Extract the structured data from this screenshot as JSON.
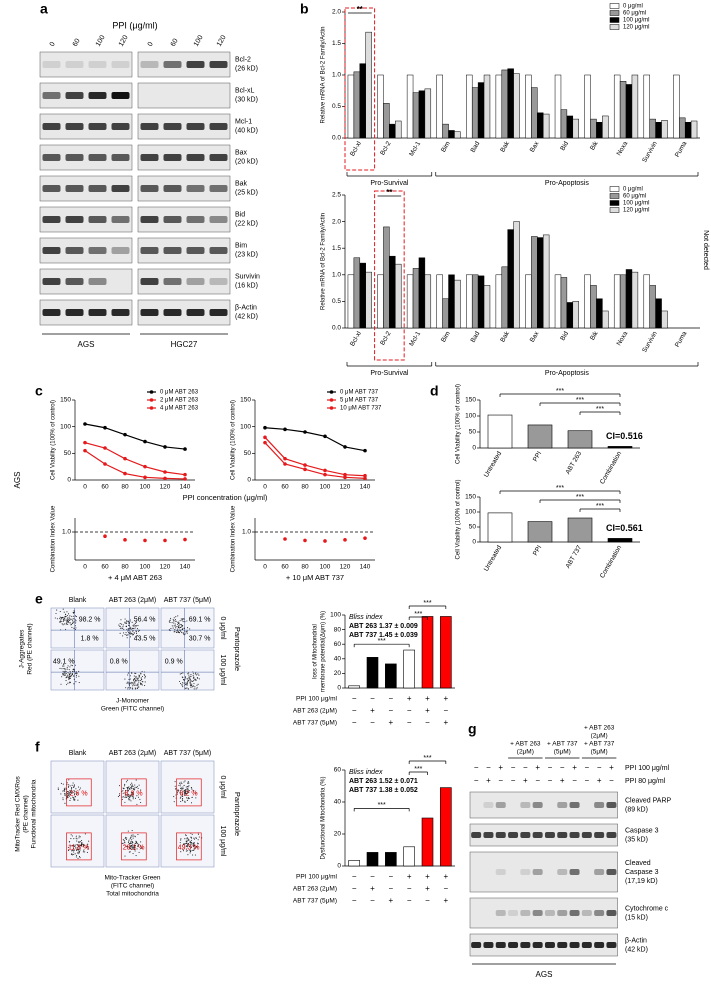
{
  "panels": [
    "a",
    "b",
    "c",
    "d",
    "e",
    "f",
    "g"
  ],
  "blot_a": {
    "title": "PPI (μg/ml)",
    "lanes": [
      "0",
      "60",
      "100",
      "120",
      "0",
      "60",
      "100",
      "120"
    ],
    "proteins": [
      [
        "Bcl-2",
        "(26 kD)"
      ],
      [
        "Bcl-xL",
        "(30 kD)"
      ],
      [
        "Mcl-1",
        "(40 kD)"
      ],
      [
        "Bax",
        "(20 kD)"
      ],
      [
        "Bak",
        "(25 kD)"
      ],
      [
        "Bid",
        "(22 kD)"
      ],
      [
        "Bim",
        "(23 kD)"
      ],
      [
        "Survivin",
        "(16 kD)"
      ],
      [
        "β-Actin",
        "(42 kD)"
      ]
    ],
    "cell_lines": [
      "AGS",
      "HGC27"
    ]
  },
  "side_label_c": "AGS",
  "chart_data": [
    {
      "type": "bar",
      "ylabel": "Relative mRNA of Bcl-2 Family/Actin",
      "categories": [
        "Bcl-xl",
        "Bcl-2",
        "Mcl-1",
        "Bim",
        "Bad",
        "Bak",
        "Bax",
        "Bid",
        "Bik",
        "Noxa",
        "Survivin",
        "Puma"
      ],
      "series": [
        {
          "name": "0 μg/ml",
          "color": "#ffffff",
          "values": [
            1,
            1,
            1,
            1,
            1,
            1,
            1,
            1,
            1,
            1,
            1,
            1
          ]
        },
        {
          "name": "60 μg/ml",
          "color": "#999999",
          "values": [
            1.05,
            0.55,
            0.72,
            0.22,
            0.8,
            1.08,
            0.8,
            0.45,
            0.3,
            0.9,
            0.3,
            0.32
          ]
        },
        {
          "name": "100 μg/ml",
          "color": "#000000",
          "values": [
            1.18,
            0.22,
            0.75,
            0.12,
            0.88,
            1.1,
            0.4,
            0.35,
            0.25,
            0.85,
            0.25,
            0.25
          ]
        },
        {
          "name": "120 μg/ml",
          "color": "#dddddd",
          "values": [
            1.68,
            0.27,
            0.78,
            0.1,
            1.0,
            1.02,
            0.38,
            0.3,
            0.35,
            1.0,
            0.28,
            0.27
          ]
        }
      ],
      "ylim": [
        0,
        2
      ],
      "yticks": [
        {
          "value": 0,
          "label": "0.0"
        },
        0.5,
        {
          "value": 1,
          "label": "1.0"
        },
        1.5,
        {
          "value": 2,
          "label": "2.0"
        }
      ],
      "legend": "upper right",
      "annotation": "**",
      "groups": [
        "Pro-Survival",
        "Pro-Apoptosis"
      ]
    },
    {
      "type": "bar",
      "ylabel": "Relative mRNA of Bcl-2 Family/Actin",
      "categories": [
        "Bcl-xl",
        "Bcl-2",
        "Mcl-1",
        "Bim",
        "Bad",
        "Bak",
        "Bax",
        "Bid",
        "Bik",
        "Noxa",
        "Survivin",
        "Puma"
      ],
      "series": [
        {
          "name": "0 μg/ml",
          "color": "#ffffff",
          "values": [
            1,
            1,
            1,
            1,
            1,
            1,
            1,
            1,
            1,
            1,
            1,
            null
          ]
        },
        {
          "name": "60 μg/ml",
          "color": "#999999",
          "values": [
            1.32,
            1.9,
            1.12,
            0.55,
            1.0,
            1.15,
            1.72,
            0.95,
            0.8,
            1.0,
            0.8,
            null
          ]
        },
        {
          "name": "100 μg/ml",
          "color": "#000000",
          "values": [
            1.22,
            1.35,
            1.32,
            1.0,
            0.98,
            1.85,
            1.7,
            0.48,
            0.55,
            1.1,
            0.55,
            null
          ]
        },
        {
          "name": "120 μg/ml",
          "color": "#dddddd",
          "values": [
            1.05,
            1.2,
            1.0,
            0.9,
            0.8,
            2.0,
            1.75,
            0.5,
            0.32,
            1.05,
            0.32,
            null
          ]
        }
      ],
      "ylim": [
        0,
        2.5
      ],
      "yticks": [
        {
          "value": 0,
          "label": "0.0"
        },
        0.5,
        {
          "value": 1,
          "label": "1.0"
        },
        1.5,
        {
          "value": 2,
          "label": "2.0"
        },
        2.5
      ],
      "legend": "upper right",
      "annotation": "**",
      "note": "Not detected",
      "groups": [
        "Pro-Survival",
        "Pro-Apoptosis"
      ]
    },
    {
      "type": "line",
      "ylabel": [
        "Cell Viability (100% of control)"
      ],
      "xlabel": "PPI concentration (μg/ml)",
      "categories": [
        "0",
        "60",
        "80",
        "100",
        "120",
        "140"
      ],
      "series": [
        {
          "name": "0 μM ABT 263",
          "color": "#000000",
          "values": [
            105,
            98,
            85,
            72,
            62,
            58
          ]
        },
        {
          "name": "2 μM ABT 263",
          "color": "#e41a1c",
          "values": [
            70,
            60,
            40,
            25,
            15,
            10
          ]
        },
        {
          "name": "4 μM ABT 263",
          "color": "#e41a1c",
          "values": [
            55,
            30,
            12,
            5,
            3,
            2
          ]
        }
      ],
      "ylim": [
        0,
        150
      ],
      "yticks": [
        0,
        50,
        100,
        150
      ],
      "legend": "upper right"
    },
    {
      "type": "line",
      "ylabel": [
        "Cell Viability (100% of control)"
      ],
      "categories": [
        "0",
        "60",
        "80",
        "100",
        "120",
        "140"
      ],
      "series": [
        {
          "name": "0 μM ABT 737",
          "color": "#000000",
          "values": [
            98,
            95,
            90,
            82,
            62,
            55
          ]
        },
        {
          "name": "5 μM ABT 737",
          "color": "#e41a1c",
          "values": [
            80,
            40,
            28,
            18,
            10,
            8
          ]
        },
        {
          "name": "10 μM ABT 737",
          "color": "#e41a1c",
          "values": [
            70,
            30,
            20,
            10,
            5,
            3
          ]
        }
      ],
      "ylim": [
        0,
        150
      ],
      "yticks": [
        0,
        50,
        100,
        150
      ],
      "legend": "upper right"
    },
    {
      "type": "scatter",
      "ylabel": [
        "Combination Index Value"
      ],
      "xlabel": "+ 4 μM ABT 263",
      "categories": [
        "0",
        "60",
        "80",
        "100",
        "120",
        "140"
      ],
      "values": [
        null,
        0.85,
        0.72,
        0.7,
        0.7,
        0.73
      ],
      "color": "#e41a1c",
      "ylim": [
        0,
        1.5
      ],
      "yticks": [
        {
          "value": 1,
          "label": "1.0"
        }
      ],
      "grid": "dashed"
    },
    {
      "type": "scatter",
      "ylabel": [
        "Combination Index Value"
      ],
      "xlabel": "+ 10 μM ABT 737",
      "categories": [
        "0",
        "60",
        "80",
        "100",
        "120",
        "140"
      ],
      "values": [
        null,
        0.75,
        0.7,
        0.68,
        0.72,
        0.78
      ],
      "color": "#e41a1c",
      "ylim": [
        0,
        1.5
      ],
      "yticks": [
        {
          "value": 1,
          "label": "1.0"
        }
      ],
      "grid": "dashed"
    },
    {
      "type": "bar",
      "ylabel": [
        "Cell Viability (100% of control)"
      ],
      "categories": [
        "Untreated",
        "PPI",
        "ABT 263",
        "Combination"
      ],
      "values": [
        103,
        72,
        54,
        5
      ],
      "colors": [
        "#ffffff",
        "#999999",
        "#999999",
        "#000000"
      ],
      "ylim": [
        0,
        150
      ],
      "yticks": [
        0,
        50,
        100,
        150
      ],
      "significance": [
        "***",
        "***",
        "***"
      ],
      "ci_label": "CI=0.516"
    },
    {
      "type": "bar",
      "ylabel": [
        "Cell Viability (100% of control)"
      ],
      "categories": [
        "Untreated",
        "PPI",
        "ABT 737",
        "Combination"
      ],
      "values": [
        97,
        68,
        80,
        12
      ],
      "colors": [
        "#ffffff",
        "#999999",
        "#999999",
        "#000000"
      ],
      "ylim": [
        0,
        150
      ],
      "yticks": [
        0,
        50,
        100,
        150
      ],
      "significance": [
        "***",
        "***",
        "***"
      ],
      "ci_label": "CI=0.561"
    },
    {
      "type": "bar",
      "ylabel": [
        "loss of Mitochondrial",
        "membrane potential(Δψm) (%)"
      ],
      "categories": [
        null,
        null,
        null,
        null,
        null,
        null
      ],
      "values": [
        3,
        42,
        33,
        52,
        98,
        98
      ],
      "colors": [
        "#ffffff",
        "#000000",
        "#000000",
        "#ffffff",
        "#ff0000",
        "#ff0000"
      ],
      "ylim": [
        0,
        100
      ],
      "yticks": [
        0,
        20,
        40,
        60,
        80,
        100
      ],
      "significance": [
        "***",
        "***",
        "***"
      ],
      "bliss_title": "Bliss index",
      "bliss": [
        "ABT 263 1.37 ± 0.009",
        "ABT 737 1.45 ± 0.039"
      ],
      "treatments": [
        {
          "label": "PPI 100 μg/ml",
          "signs": [
            "−",
            "−",
            "−",
            "+",
            "+",
            "+"
          ]
        },
        {
          "label": "ABT 263 (2μM)",
          "signs": [
            "−",
            "+",
            "−",
            "−",
            "+",
            "−"
          ]
        },
        {
          "label": "ABT 737 (5μM)",
          "signs": [
            "−",
            "−",
            "+",
            "−",
            "−",
            "+"
          ]
        }
      ]
    },
    {
      "type": "bar",
      "ylabel": [
        "Dysfunctional Mitochondria (%)"
      ],
      "categories": [
        null,
        null,
        null,
        null,
        null,
        null
      ],
      "values": [
        3.5,
        8.5,
        8.5,
        12,
        30,
        49
      ],
      "colors": [
        "#ffffff",
        "#000000",
        "#000000",
        "#ffffff",
        "#ff0000",
        "#ff0000"
      ],
      "ylim": [
        0,
        60
      ],
      "yticks": [
        0,
        20,
        40,
        60
      ],
      "significance": [
        "***",
        "***",
        "***"
      ],
      "bliss_title": "Bliss index",
      "bliss": [
        "ABT 263 1.52 ± 0.071",
        "ABT 737 1.38 ± 0.052"
      ],
      "treatments": [
        {
          "label": "PPI 100 μg/ml",
          "signs": [
            "−",
            "−",
            "−",
            "+",
            "+",
            "+"
          ]
        },
        {
          "label": "ABT 263 (2μM)",
          "signs": [
            "−",
            "+",
            "−",
            "−",
            "+",
            "−"
          ]
        },
        {
          "label": "ABT 737 (5μM)",
          "signs": [
            "−",
            "−",
            "+",
            "−",
            "−",
            "+"
          ]
        }
      ]
    }
  ],
  "flow_e": {
    "columns": [
      "Blank",
      "ABT 263 (2μM)",
      "ABT 737 (5μM)"
    ],
    "rows": [
      "0 μg/ml",
      "100 μg/ml"
    ],
    "row_title": "Pantoprazole",
    "y_label": [
      "J-Aggregates",
      "Red (PE channel)"
    ],
    "x_label": [
      "J-Monomer",
      "Green (FITC channel)"
    ],
    "percentages": [
      [
        "98.2 %",
        "1.8 %"
      ],
      [
        "56.4 %",
        "43.5 %"
      ],
      [
        "69.1 %",
        "30.7 %"
      ],
      [
        "49.1 %"
      ],
      [
        "0.8 %"
      ],
      [
        "0.9 %"
      ]
    ]
  },
  "flow_f": {
    "columns": [
      "Blank",
      "ABT 263 (2μM)",
      "ABT 737 (5μM)"
    ],
    "rows": [
      "0 μg/ml",
      "100 μg/ml"
    ],
    "row_title": "Pantoprazole",
    "y_label": [
      "MitoTracker Red CMXRos",
      "(PE channel)",
      "Functional mitochondria"
    ],
    "x_label": [
      "Mito-Tracker Green",
      "(FITC channel)",
      "Total mitochondria"
    ],
    "percentages": [
      [
        "2.6 %"
      ],
      [
        "8.3 %"
      ],
      [
        "8.2 %"
      ],
      [
        "11.8 %"
      ],
      [
        "28.1 %"
      ],
      [
        "49.3 %"
      ]
    ]
  },
  "blot_g": {
    "headers": [
      [
        "+ ABT 263",
        "(2μM)"
      ],
      [
        "+ ABT 737",
        "(5μM)"
      ],
      [
        "+ ABT 263",
        "(2μM)",
        "+ ABT 737",
        "(5μM)"
      ]
    ],
    "treatments": [
      {
        "label": "PPI 100 μg/ml",
        "signs": [
          "−",
          "−",
          "+",
          "−",
          "−",
          "+",
          "−",
          "−",
          "+",
          "−",
          "−",
          "+"
        ]
      },
      {
        "label": "PPI 80 μg/ml",
        "signs": [
          "−",
          "+",
          "−",
          "−",
          "+",
          "−",
          "−",
          "+",
          "−",
          "−",
          "+",
          "−"
        ]
      }
    ],
    "proteins": [
      [
        "Cleaved PARP",
        "(89 kD)"
      ],
      [
        "Caspase 3",
        "(35 kD)"
      ],
      [
        "Cleaved",
        "Caspase 3",
        "(17,19 kD)"
      ],
      [
        "Cytochrome c",
        "(15 kD)"
      ],
      [
        "β-Actin",
        "(42 kD)"
      ]
    ],
    "cell_line": "AGS"
  }
}
